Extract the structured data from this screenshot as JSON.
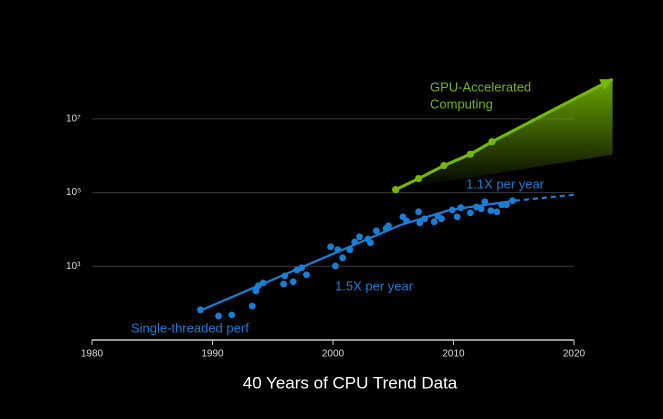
{
  "chart_data": {
    "type": "line",
    "title": "40 Years of CPU Trend Data",
    "xlim": [
      1980,
      2020
    ],
    "xticks": [
      1980,
      1990,
      2000,
      2010,
      2020
    ],
    "ylim": [
      10,
      100000000
    ],
    "log_y": true,
    "yticks": [
      {
        "value": 1000,
        "label": "10³"
      },
      {
        "value": 100000,
        "label": "10⁵"
      },
      {
        "value": 10000000,
        "label": "10⁷"
      }
    ],
    "grid": true,
    "annotations": [
      "GPU-Accelerated",
      "Computing",
      "1.1X per year",
      "1.5X per year",
      "Single-threaded perf"
    ],
    "series": [
      {
        "type": "scatter",
        "color": "#1a7fd4",
        "x": [
          1989,
          1990.5,
          1991.6,
          1993.3,
          1993.6,
          1993.8,
          1994.2,
          1995.9,
          1996,
          1996.7,
          1997,
          1997.4,
          1997.8,
          1999.8,
          2000.2,
          2000.4,
          2000.8,
          2001.4,
          2001.8,
          2002.2,
          2002.9,
          2003.1,
          2003.6,
          2004.4,
          2004.6,
          2005.8,
          2006.1,
          2007.1,
          2007.2,
          2007.6,
          2008.4,
          2008.7,
          2009,
          2009.9,
          2010.3,
          2010.6,
          2011.4,
          2011.9,
          2012.3,
          2012.6,
          2013.1,
          2013.6,
          2014,
          2014.4,
          2014.9
        ],
        "values": [
          66,
          45,
          48,
          83,
          214,
          295,
          355,
          331,
          550,
          380,
          794,
          912,
          589,
          3388,
          1023,
          2818,
          1698,
          2818,
          4571,
          6310,
          5495,
          4365,
          9120,
          10471,
          12589,
          21878,
          16982,
          30200,
          15136,
          19498,
          16218,
          23442,
          19498,
          33884,
          21878,
          38905,
          28184,
          40738,
          36308,
          56234,
          32359,
          30200,
          46774,
          46774,
          60256
        ]
      },
      {
        "type": "line",
        "color": "#1a7fd4",
        "x": [
          1989,
          1997.3,
          2005.6,
          2009.7,
          2015.1
        ],
        "values": [
          63,
          912,
          13183,
          33884,
          60256
        ]
      },
      {
        "type": "line",
        "color": "#1a7fd4",
        "dashed": true,
        "x": [
          2015.1,
          2020
        ],
        "values": [
          60256,
          87096
        ]
      },
      {
        "type": "line",
        "color": "#76b900",
        "markers": true,
        "area": true,
        "x": [
          2005.2,
          2007.1,
          2009.2,
          2011.4,
          2013.2,
          2023.2
        ],
        "values": [
          120000,
          240000,
          540000,
          1100000,
          2400000,
          120000000
        ]
      }
    ]
  }
}
